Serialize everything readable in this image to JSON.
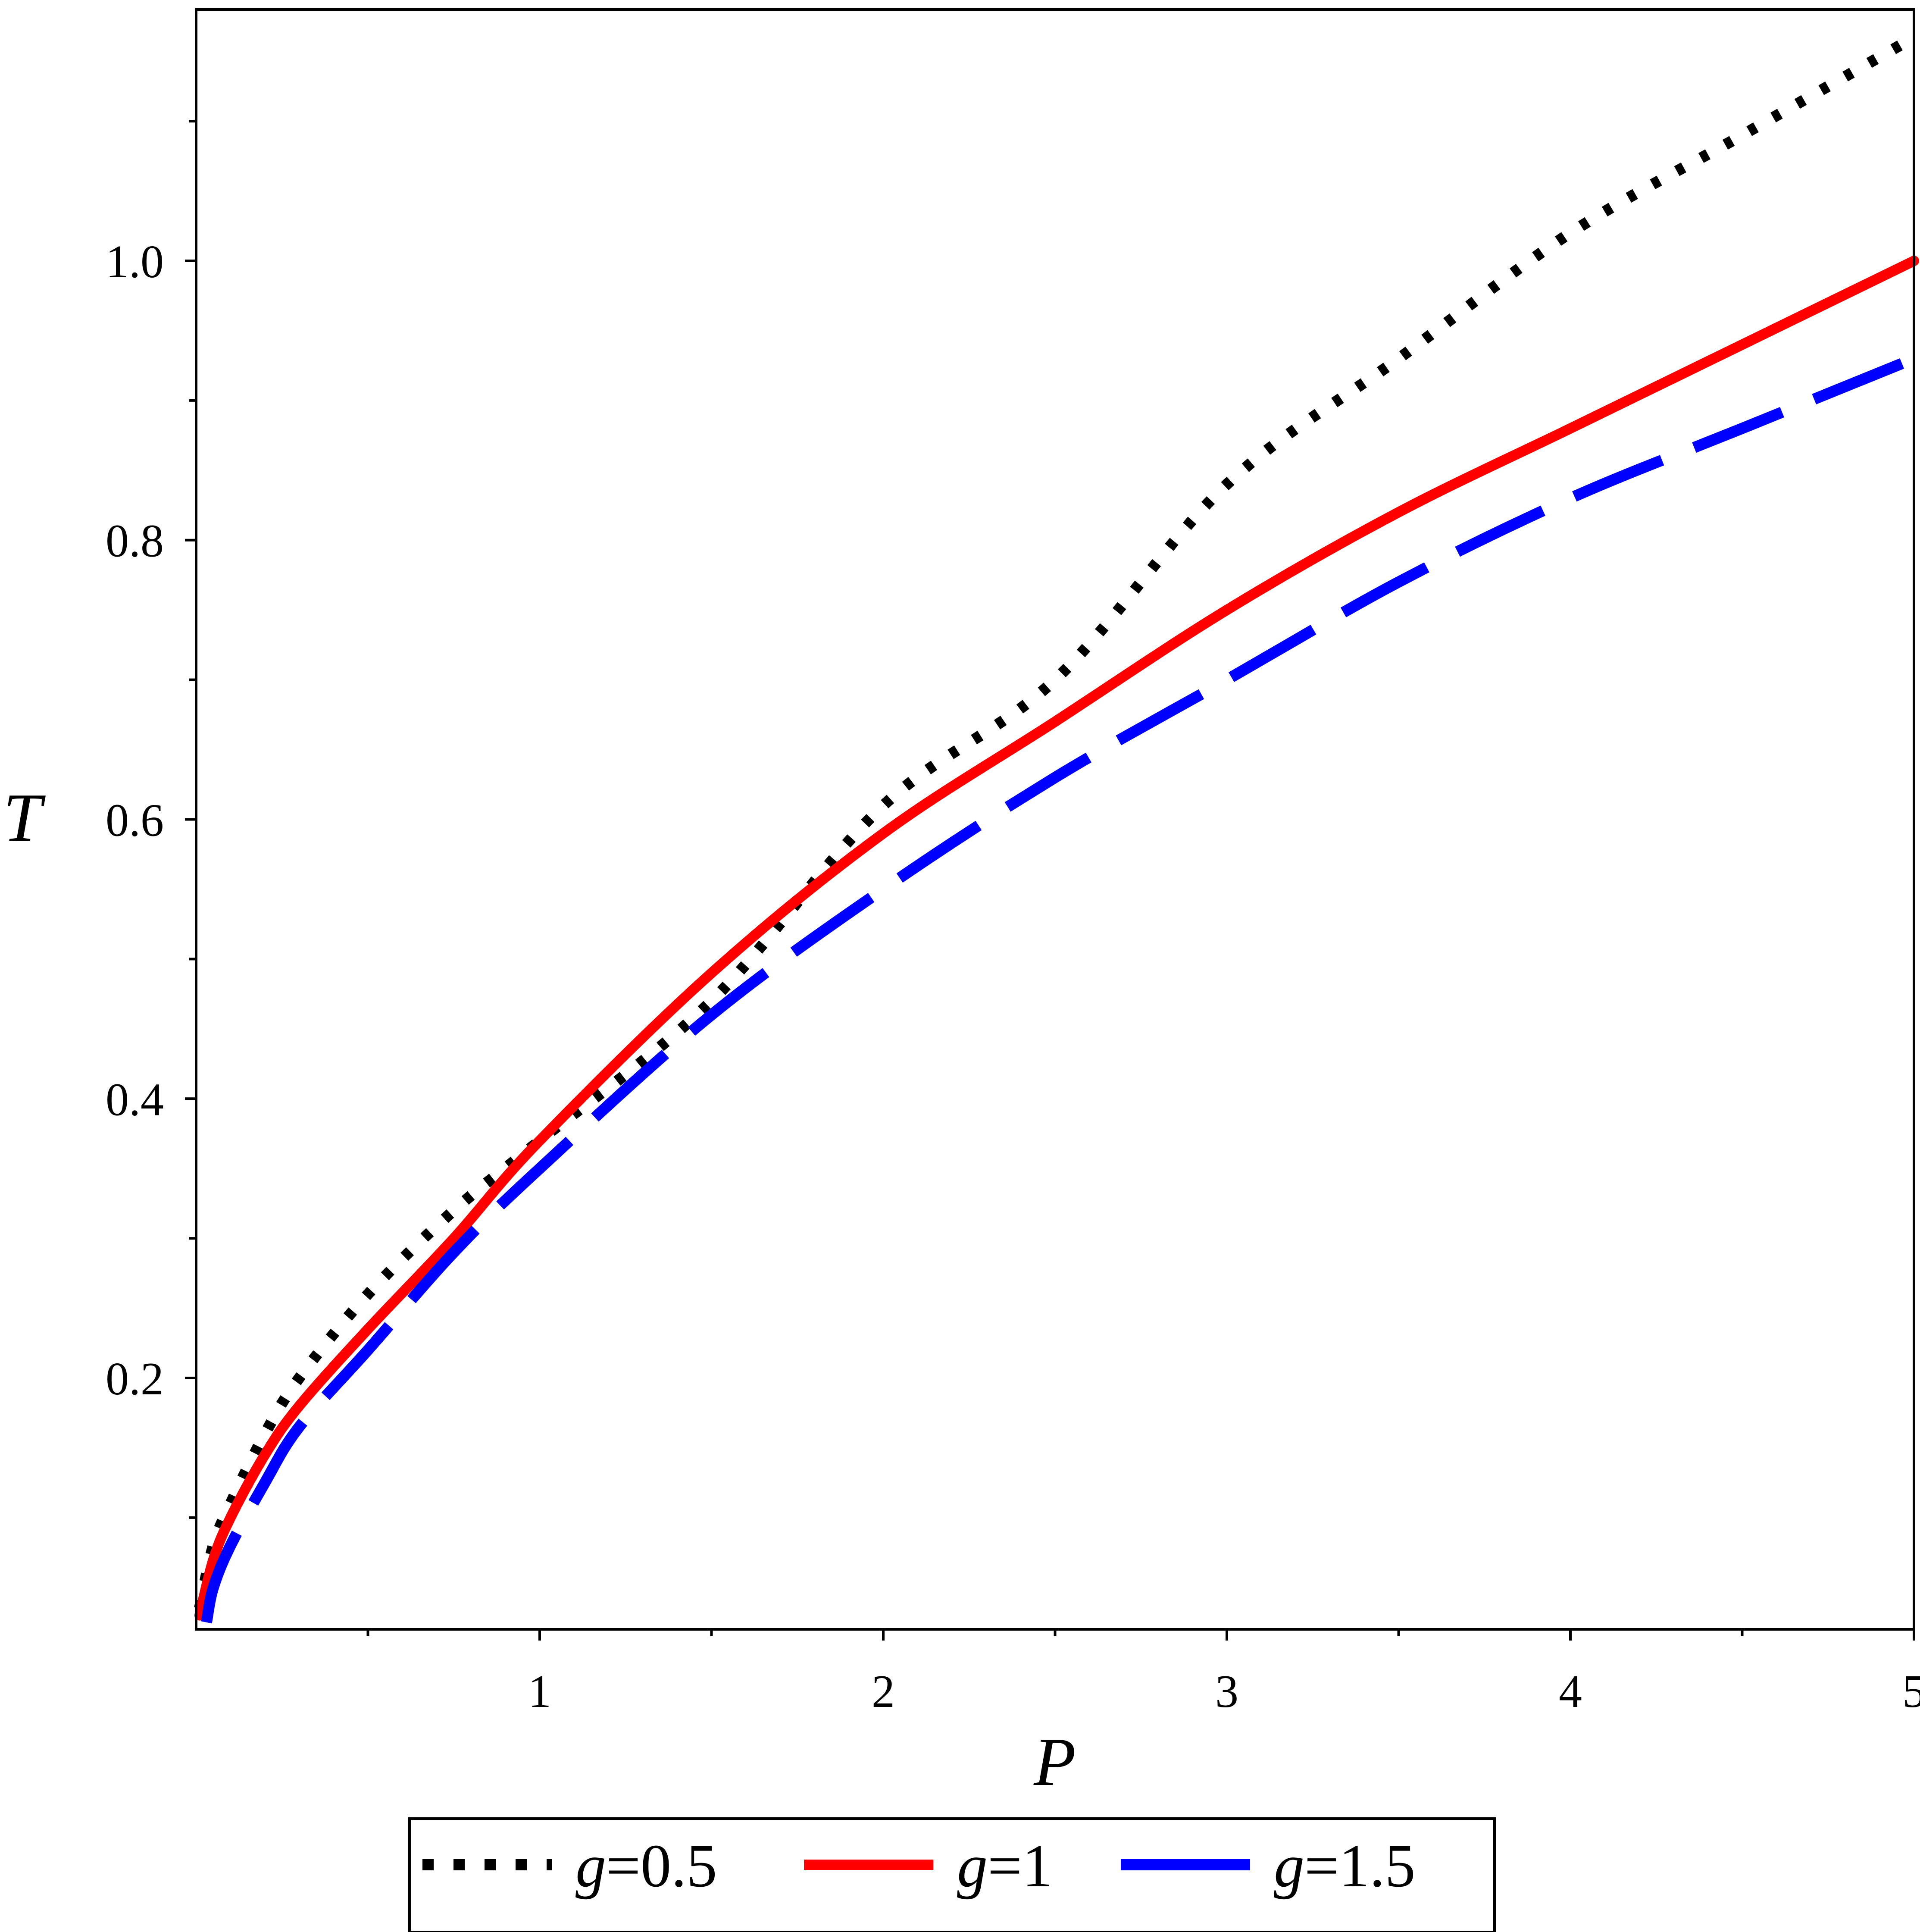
{
  "chart_data": {
    "type": "line",
    "title": "",
    "xlabel": "P",
    "ylabel": "T",
    "xlim": [
      0,
      5
    ],
    "ylim": [
      0.02,
      1.18
    ],
    "x_ticks": [
      1,
      2,
      3,
      4,
      5
    ],
    "x_tick_labels": [
      "1",
      "2",
      "3",
      "4",
      "5"
    ],
    "x_minor_ticks": [
      0.5,
      1.5,
      2.5,
      3.5,
      4.5
    ],
    "y_ticks": [
      0.2,
      0.4,
      0.6,
      0.8,
      1.0
    ],
    "y_tick_labels": [
      "0.2",
      "0.4",
      "0.6",
      "0.8",
      "1.0"
    ],
    "y_minor_ticks": [
      0.1,
      0.3,
      0.5,
      0.7,
      0.9,
      1.1
    ],
    "grid": false,
    "legend_position": "bottom",
    "series": [
      {
        "name": "g=0.5",
        "var": "g",
        "value_text": "=0.5",
        "style": "dotted",
        "color": "#000000",
        "x": [
          0.01,
          0.05,
          0.1,
          0.2,
          0.3,
          0.5,
          0.75,
          1,
          1.5,
          2,
          2.5,
          3,
          3.5,
          4,
          4.5,
          5
        ],
        "y": [
          0.035,
          0.08,
          0.11,
          0.16,
          0.2,
          0.26,
          0.32,
          0.37,
          0.47,
          0.61,
          0.7,
          0.84,
          0.93,
          1.02,
          1.09,
          1.16
        ]
      },
      {
        "name": "g=1",
        "var": "g",
        "value_text": "=1",
        "style": "solid",
        "color": "#ff0000",
        "x": [
          0.01,
          0.05,
          0.1,
          0.2,
          0.3,
          0.5,
          0.75,
          1,
          1.5,
          2,
          2.5,
          3,
          3.5,
          4,
          4.5,
          5
        ],
        "y": [
          0.03,
          0.07,
          0.1,
          0.145,
          0.18,
          0.235,
          0.3,
          0.37,
          0.49,
          0.59,
          0.67,
          0.75,
          0.82,
          0.88,
          0.94,
          1.0
        ]
      },
      {
        "name": "g=1.5",
        "var": "g",
        "value_text": "=1.5",
        "style": "dashed",
        "color": "#0000ff",
        "x": [
          0.03,
          0.05,
          0.1,
          0.2,
          0.3,
          0.5,
          0.75,
          1,
          1.5,
          2,
          2.5,
          3,
          3.5,
          4,
          4.5,
          5
        ],
        "y": [
          0.025,
          0.05,
          0.08,
          0.125,
          0.165,
          0.22,
          0.29,
          0.35,
          0.46,
          0.55,
          0.63,
          0.7,
          0.77,
          0.83,
          0.88,
          0.93
        ]
      }
    ]
  }
}
